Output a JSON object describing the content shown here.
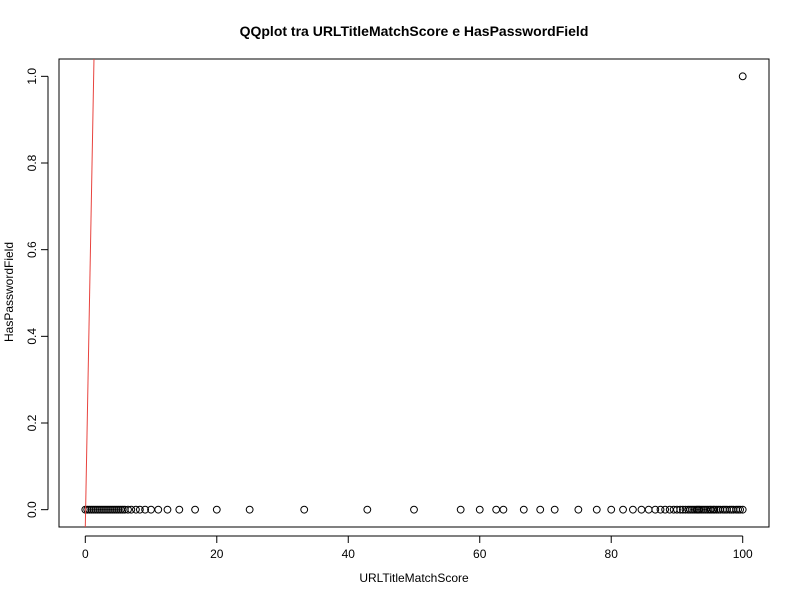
{
  "chart_data": {
    "type": "scatter",
    "title": "QQplot tra URLTitleMatchScore e HasPasswordField",
    "xlabel": "URLTitleMatchScore",
    "ylabel": "HasPasswordField",
    "xlim": [
      -4,
      104
    ],
    "ylim": [
      -0.04,
      1.04
    ],
    "xticks": [
      0,
      20,
      40,
      60,
      80,
      100
    ],
    "yticks": [
      0.0,
      0.2,
      0.4,
      0.6,
      0.8,
      1.0
    ],
    "xtick_labels": [
      "0",
      "20",
      "40",
      "60",
      "80",
      "100"
    ],
    "ytick_labels": [
      "0.0",
      "0.2",
      "0.4",
      "0.6",
      "0.8",
      "1.0"
    ],
    "grid": false,
    "marker": "open-circle",
    "series": [
      {
        "x": [
          0,
          0.3,
          0.6,
          0.9,
          1.2,
          1.5,
          1.8,
          2.1,
          2.4,
          2.7,
          3.0,
          3.3,
          3.6,
          3.9,
          4.2,
          4.5,
          4.8,
          5.1,
          5.4,
          5.7,
          6.0,
          6.5,
          7.0,
          7.7,
          8.3,
          9.1,
          10.0,
          11.1,
          12.5,
          14.3,
          16.7,
          20,
          25,
          33.3,
          42.9,
          50,
          57.1,
          60,
          62.5,
          63.6,
          66.7,
          69.2,
          71.4,
          75,
          77.8,
          80,
          81.8,
          83.3,
          84.6,
          85.7,
          86.7,
          87.5,
          88.2,
          88.9,
          89.5,
          90,
          90.5,
          90.9,
          91.3,
          91.7,
          92,
          92.3,
          92.6,
          92.9,
          93.1,
          93.3,
          93.5,
          93.8,
          94.1,
          94.4,
          94.7,
          95,
          95.2,
          95.5,
          95.7,
          96,
          96.3,
          96.6,
          97,
          97.3,
          97.6,
          98,
          98.3,
          98.6,
          99,
          99.3,
          99.6,
          100,
          100
        ],
        "y": [
          0,
          0,
          0,
          0,
          0,
          0,
          0,
          0,
          0,
          0,
          0,
          0,
          0,
          0,
          0,
          0,
          0,
          0,
          0,
          0,
          0,
          0,
          0,
          0,
          0,
          0,
          0,
          0,
          0,
          0,
          0,
          0,
          0,
          0,
          0,
          0,
          0,
          0,
          0,
          0,
          0,
          0,
          0,
          0,
          0,
          0,
          0,
          0,
          0,
          0,
          0,
          0,
          0,
          0,
          0,
          0,
          0,
          0,
          0,
          0,
          0,
          0,
          0,
          0,
          0,
          0,
          0,
          0,
          0,
          0,
          0,
          0,
          0,
          0,
          0,
          0,
          0,
          0,
          0,
          0,
          0,
          0,
          0,
          0,
          0,
          0,
          0,
          0,
          1
        ]
      }
    ],
    "reference_line": {
      "color": "#e8433e",
      "points": [
        [
          0,
          -0.04
        ],
        [
          1.32,
          1.04
        ]
      ]
    }
  }
}
